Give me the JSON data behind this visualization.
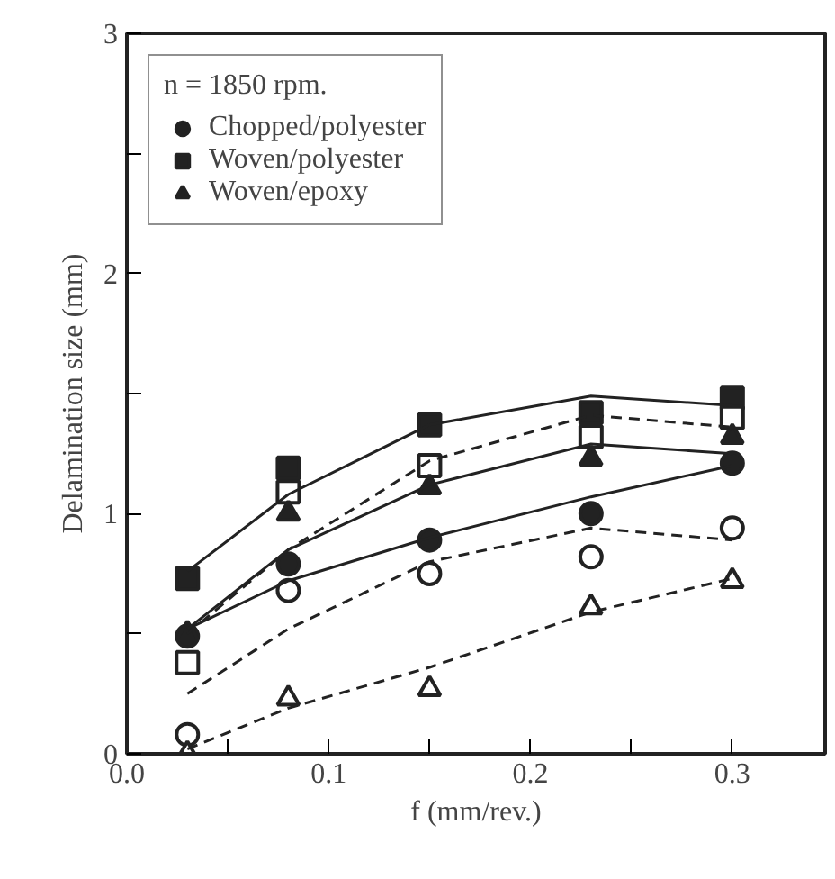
{
  "chart_data": {
    "type": "scatter",
    "xlabel": "f (mm/rev.)",
    "ylabel": "Delamination size (mm)",
    "legend_title": "n = 1850 rpm.",
    "legend": "top left",
    "grid": false,
    "xlim": [
      0,
      0.346
    ],
    "ylim": [
      0,
      3
    ],
    "xticks": [
      {
        "value": 0,
        "label": "0.0"
      },
      {
        "value": 0.05,
        "label": null
      },
      {
        "value": 0.1,
        "label": "0.1"
      },
      {
        "value": 0.15,
        "label": null
      },
      {
        "value": 0.2,
        "label": "0.2"
      },
      {
        "value": 0.25,
        "label": null
      },
      {
        "value": 0.3,
        "label": "0.3"
      }
    ],
    "yticks": [
      0,
      {
        "value": 0.5,
        "label": null
      },
      1,
      {
        "value": 1.5,
        "label": null
      },
      2,
      {
        "value": 2.5,
        "label": null
      },
      3
    ],
    "x": [
      0.03,
      0.08,
      0.15,
      0.23,
      0.3
    ],
    "series": [
      {
        "name": "Chopped/polyester",
        "color": "#222222",
        "marker": "circle",
        "values": [
          0.49,
          0.79,
          0.89,
          1.0,
          1.21
        ]
      },
      {
        "color": "#ffffff",
        "marker": "circle",
        "values": [
          0.08,
          0.68,
          0.75,
          0.82,
          0.94
        ]
      },
      {
        "name": "Woven/polyester",
        "color": "#222222",
        "marker": "square",
        "values": [
          0.73,
          1.19,
          1.37,
          1.42,
          1.48
        ]
      },
      {
        "color": "#ffffff",
        "marker": "square",
        "values": [
          0.38,
          1.09,
          1.2,
          1.32,
          1.4
        ]
      },
      {
        "name": "Woven/epoxy",
        "color": "#222222",
        "marker": "triangle",
        "values": [
          0.5,
          1.0,
          1.11,
          1.23,
          1.32
        ]
      },
      {
        "color": "#ffffff",
        "marker": "triangle",
        "values": [
          0.0,
          0.23,
          0.27,
          0.61,
          0.72
        ]
      },
      {
        "type": "line",
        "color": "#222222",
        "marker": "none",
        "line_style": "solid",
        "x": [
          0.03,
          0.08,
          0.15,
          0.23,
          0.3
        ],
        "values": [
          0.52,
          0.72,
          0.9,
          1.07,
          1.2
        ]
      },
      {
        "type": "line",
        "color": "#222222",
        "marker": "none",
        "line_style": "dashed",
        "x": [
          0.03,
          0.08,
          0.15,
          0.23,
          0.3
        ],
        "values": [
          0.25,
          0.52,
          0.8,
          0.94,
          0.89
        ]
      },
      {
        "type": "line",
        "color": "#222222",
        "marker": "none",
        "line_style": "solid",
        "x": [
          0.03,
          0.08,
          0.15,
          0.23,
          0.3
        ],
        "values": [
          0.76,
          1.08,
          1.37,
          1.49,
          1.45
        ]
      },
      {
        "type": "line",
        "color": "#222222",
        "marker": "none",
        "line_style": "dashed",
        "x": [
          0.03,
          0.08,
          0.15,
          0.23,
          0.3
        ],
        "values": [
          0.5,
          0.85,
          1.22,
          1.41,
          1.36
        ]
      },
      {
        "type": "line",
        "color": "#222222",
        "marker": "none",
        "line_style": "solid",
        "x": [
          0.03,
          0.08,
          0.15,
          0.23,
          0.3
        ],
        "values": [
          0.52,
          0.85,
          1.12,
          1.29,
          1.25
        ]
      },
      {
        "type": "line",
        "color": "#222222",
        "marker": "none",
        "line_style": "dashed",
        "x": [
          0.03,
          0.08,
          0.15,
          0.23,
          0.3
        ],
        "values": [
          0.02,
          0.19,
          0.36,
          0.59,
          0.73
        ]
      }
    ]
  }
}
